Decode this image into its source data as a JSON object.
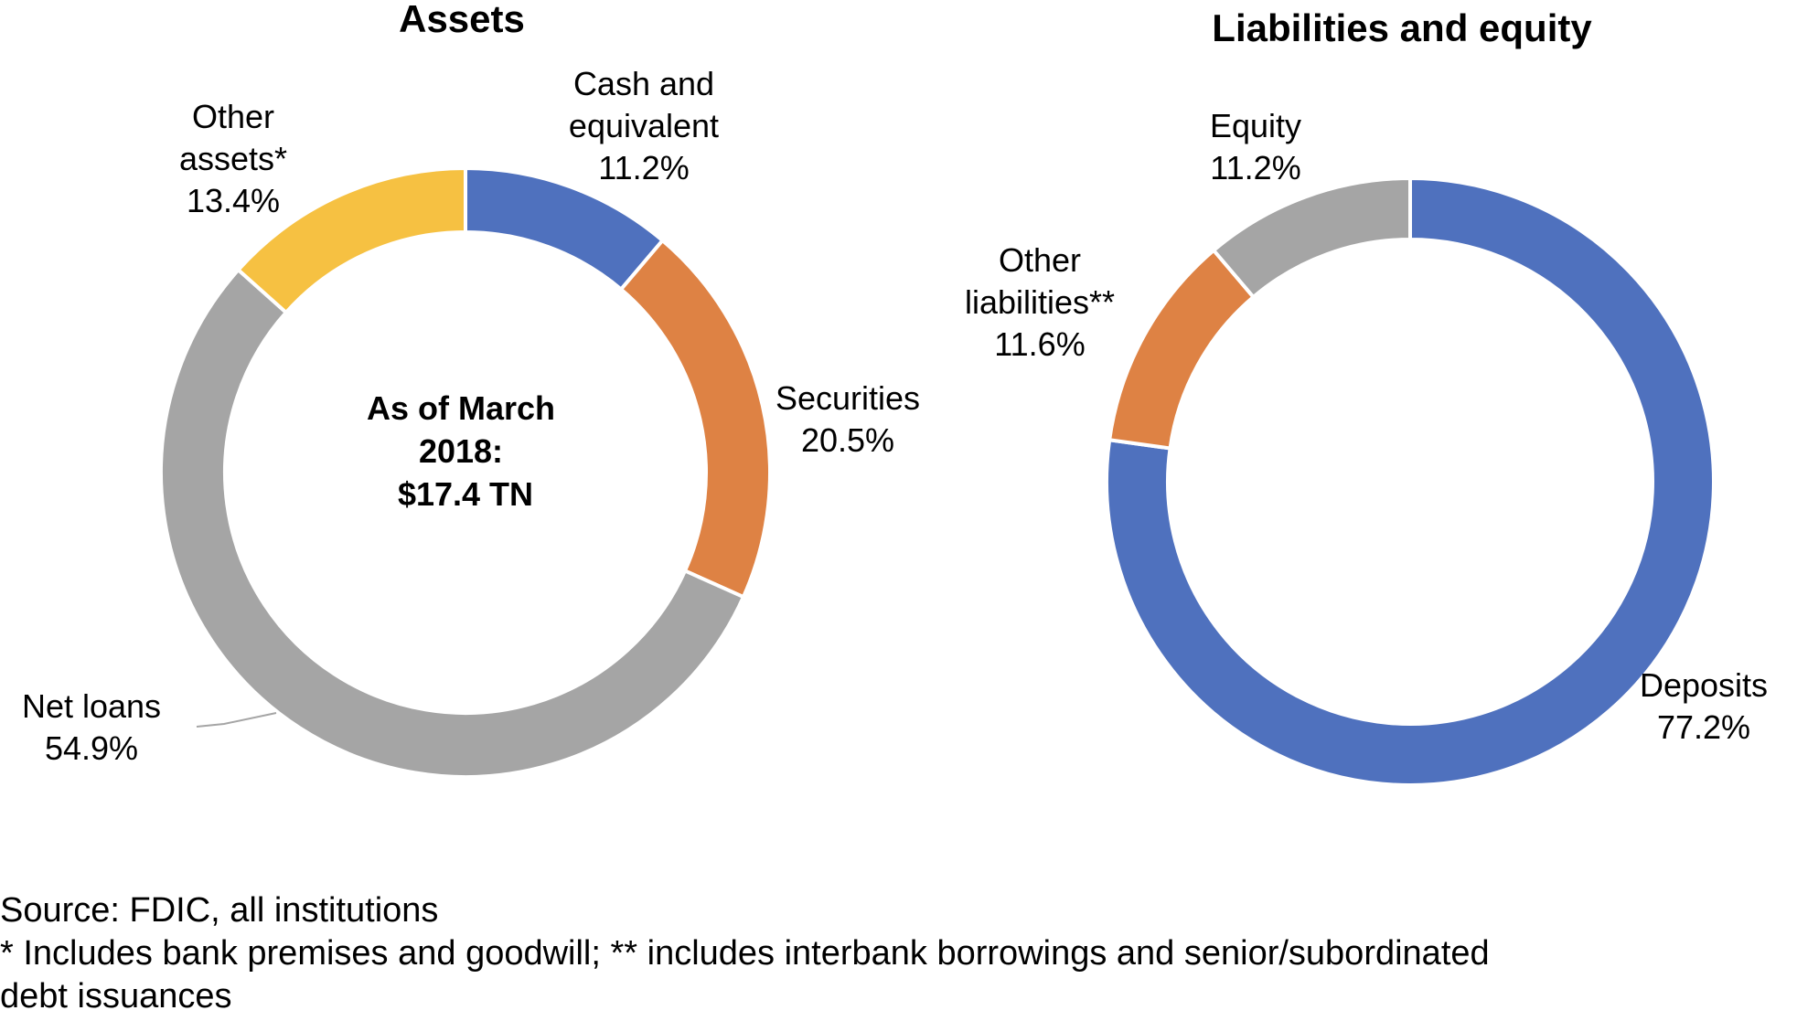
{
  "chart_data": [
    {
      "type": "pie",
      "title": "Assets",
      "center_text": [
        "As of March",
        "2018:",
        "$17.4 TN"
      ],
      "slices": [
        {
          "label": [
            "Cash and",
            "equivalent"
          ],
          "value": 11.2,
          "value_label": "11.2%",
          "color": "#4F71BE"
        },
        {
          "label": [
            "Securities"
          ],
          "value": 20.5,
          "value_label": "20.5%",
          "color": "#DE8244"
        },
        {
          "label": [
            "Net loans"
          ],
          "value": 54.9,
          "value_label": "54.9%",
          "color": "#A5A5A5"
        },
        {
          "label": [
            "Other",
            "assets*"
          ],
          "value": 13.4,
          "value_label": "13.4%",
          "color": "#F6C142"
        }
      ]
    },
    {
      "type": "pie",
      "title": "Liabilities and equity",
      "slices": [
        {
          "label": [
            "Deposits"
          ],
          "value": 77.2,
          "value_label": "77.2%",
          "color": "#4F71BE"
        },
        {
          "label": [
            "Other",
            "liabilities**"
          ],
          "value": 11.6,
          "value_label": "11.6%",
          "color": "#DE8244"
        },
        {
          "label": [
            "Equity"
          ],
          "value": 11.2,
          "value_label": "11.2%",
          "color": "#A5A5A5"
        }
      ]
    }
  ],
  "footnotes": {
    "source": "Source: FDIC, all institutions",
    "note_line1": "* Includes bank premises and goodwill; ** includes interbank borrowings and senior/subordinated",
    "note_line2": "debt issuances"
  }
}
